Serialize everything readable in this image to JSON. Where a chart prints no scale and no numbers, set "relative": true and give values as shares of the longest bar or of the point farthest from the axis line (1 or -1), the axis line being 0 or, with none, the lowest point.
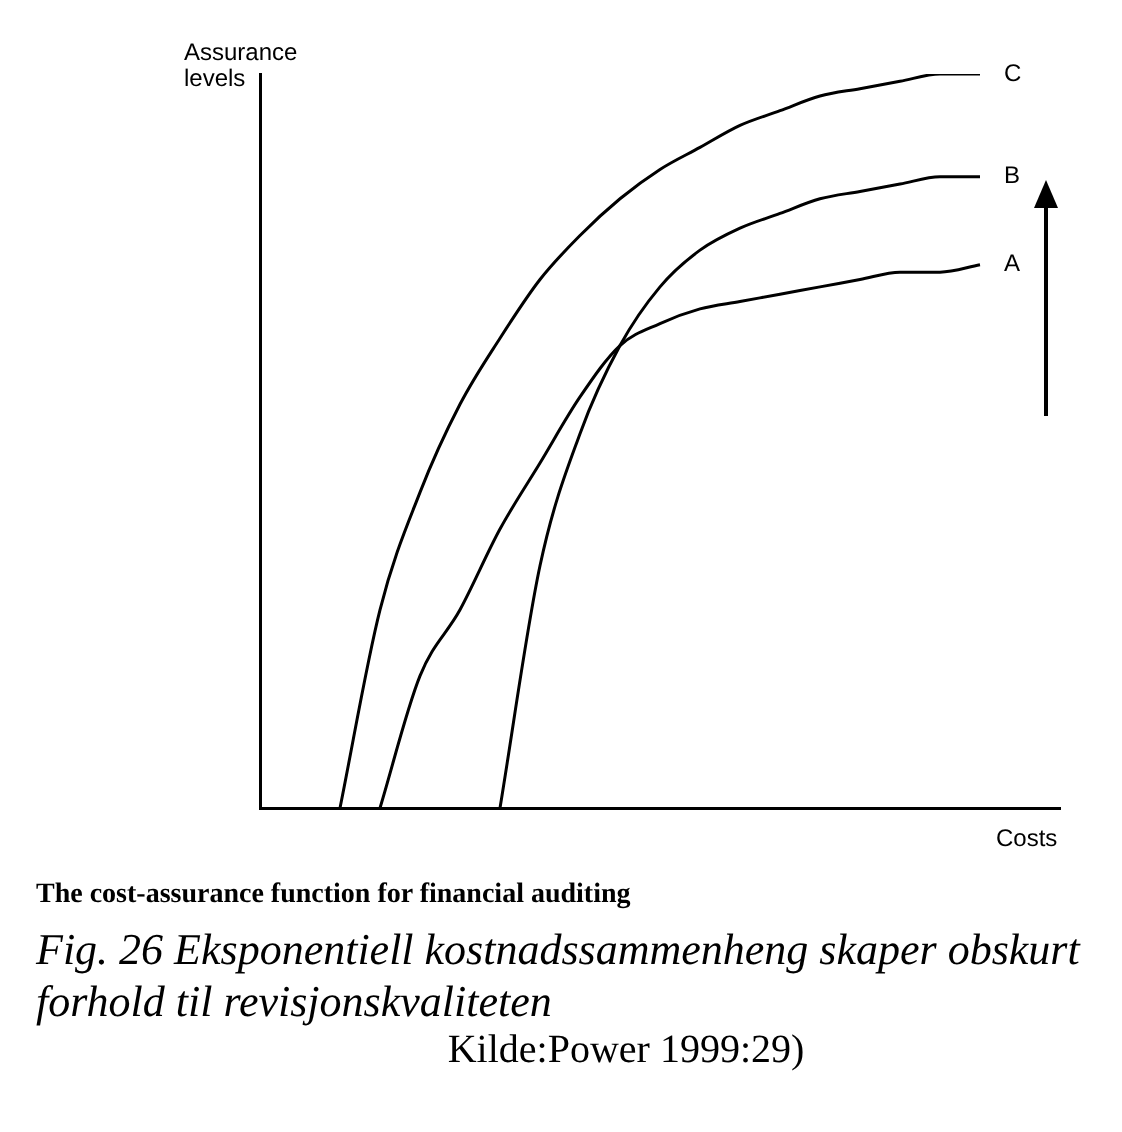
{
  "chart_data": {
    "type": "line",
    "relative": true,
    "xlabel": "Costs",
    "ylabel": "Assurance levels",
    "legend": false,
    "marker": "none",
    "line_style": "solid",
    "grid": false,
    "tick_labels": false,
    "categories": [
      null,
      null,
      null,
      null,
      null,
      null,
      null,
      null,
      null,
      null,
      null,
      null,
      null,
      null,
      null,
      null,
      null,
      null,
      null,
      null,
      null
    ],
    "series": [
      {
        "name": "C",
        "color": "#000000",
        "values": [
          null,
          null,
          0,
          0.27,
          0.43,
          0.55,
          0.64,
          0.72,
          0.78,
          0.83,
          0.87,
          0.9,
          0.93,
          0.95,
          0.97,
          0.98,
          0.99,
          1,
          1,
          null,
          null
        ]
      },
      {
        "name": "B",
        "color": "#000000",
        "values": [
          null,
          null,
          null,
          null,
          null,
          null,
          0,
          0.33,
          0.51,
          0.63,
          0.71,
          0.76,
          0.79,
          0.81,
          0.83,
          0.84,
          0.85,
          0.86,
          0.86,
          null,
          null
        ]
      },
      {
        "name": "A",
        "color": "#000000",
        "values": [
          null,
          null,
          null,
          0,
          0.18,
          0.27,
          0.38,
          0.47,
          0.56,
          0.63,
          0.66,
          0.68,
          0.69,
          0.7,
          0.71,
          0.72,
          0.73,
          0.73,
          0.74,
          null,
          null
        ]
      }
    ],
    "annotations": [
      "The cost-assurance function for financial auditing",
      "Fig. 26 Eksponentiell kostnadssammenheng skaper obskurt forhold til revisjonskvaliteten",
      "Kilde:Power 1999:29)"
    ]
  }
}
